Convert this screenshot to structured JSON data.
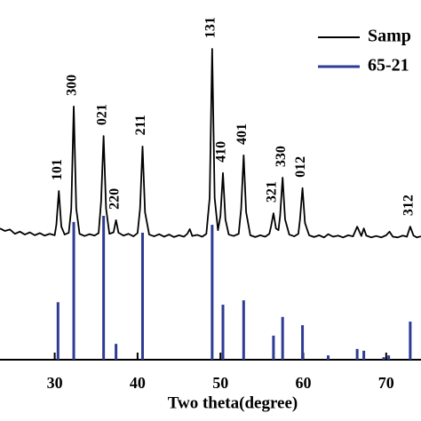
{
  "chart_data": {
    "type": "line",
    "xlabel": "Two theta(degree)",
    "xlim": [
      23.4,
      74.2
    ],
    "xticks": [
      30,
      40,
      50,
      60,
      70
    ],
    "ylim": [
      0,
      100
    ],
    "series": [
      {
        "name": "Samp",
        "color": "#000000",
        "style": "line",
        "x": [
          23.4,
          24.0,
          24.6,
          25.2,
          25.8,
          26.4,
          27.0,
          27.6,
          28.2,
          28.8,
          29.4,
          30.0,
          30.2,
          30.5,
          30.8,
          31.2,
          31.7,
          32.0,
          32.3,
          32.6,
          33.0,
          33.6,
          34.2,
          34.8,
          35.3,
          35.6,
          35.9,
          36.2,
          36.6,
          37.1,
          37.4,
          37.7,
          38.3,
          38.9,
          39.5,
          40.0,
          40.3,
          40.6,
          40.9,
          41.4,
          42.0,
          42.6,
          43.2,
          43.8,
          44.4,
          45.0,
          45.6,
          46.0,
          46.3,
          46.6,
          47.2,
          47.8,
          48.3,
          48.7,
          49.0,
          49.3,
          49.7,
          50.0,
          50.3,
          50.6,
          51.0,
          51.6,
          52.2,
          52.5,
          52.8,
          53.1,
          53.6,
          54.2,
          54.8,
          55.4,
          55.9,
          56.1,
          56.4,
          56.7,
          57.0,
          57.2,
          57.5,
          57.8,
          58.3,
          58.9,
          59.4,
          59.6,
          59.9,
          60.2,
          60.7,
          61.3,
          61.9,
          62.5,
          63.0,
          63.6,
          64.2,
          64.8,
          65.4,
          66.0,
          66.5,
          67.0,
          67.3,
          67.6,
          68.2,
          68.8,
          69.4,
          70.0,
          70.4,
          70.8,
          71.4,
          72.0,
          72.5,
          72.9,
          73.3,
          73.7,
          74.2
        ],
        "values": [
          36.5,
          35.8,
          36.2,
          35.0,
          35.6,
          34.8,
          35.4,
          34.6,
          35.2,
          34.5,
          35.0,
          34.6,
          37.5,
          46.9,
          37.0,
          34.8,
          35.3,
          42.0,
          70.4,
          42.0,
          35.0,
          34.4,
          34.9,
          34.5,
          35.2,
          44.0,
          62.2,
          42.0,
          35.0,
          35.4,
          38.8,
          35.3,
          34.5,
          35.0,
          34.3,
          35.2,
          42.0,
          59.3,
          41.0,
          34.8,
          34.3,
          34.9,
          34.2,
          34.8,
          34.1,
          34.6,
          34.2,
          35.0,
          36.3,
          34.4,
          34.7,
          34.2,
          35.0,
          45.0,
          86.4,
          45.0,
          36.0,
          40.0,
          51.9,
          39.0,
          34.8,
          34.4,
          35.0,
          42.0,
          56.8,
          41.0,
          34.6,
          34.1,
          34.6,
          34.2,
          35.0,
          37.0,
          40.7,
          36.5,
          36.0,
          40.0,
          50.6,
          39.0,
          34.8,
          34.3,
          35.0,
          39.0,
          47.7,
          38.0,
          34.6,
          34.1,
          34.6,
          34.0,
          34.9,
          34.2,
          34.5,
          34.0,
          34.6,
          34.3,
          37.0,
          34.4,
          36.5,
          34.5,
          34.0,
          34.4,
          34.0,
          34.6,
          35.6,
          34.2,
          34.0,
          34.5,
          34.2,
          37.0,
          34.5,
          34.0,
          34.3
        ]
      },
      {
        "name": "65-21",
        "color": "#2e3b94",
        "style": "stick",
        "x": [
          30.4,
          32.3,
          35.9,
          37.4,
          40.6,
          49.0,
          50.3,
          52.8,
          56.4,
          57.5,
          59.9,
          63.0,
          66.5,
          67.3,
          69.7,
          70.3,
          72.9
        ],
        "values": [
          16.0,
          38.3,
          40.0,
          4.4,
          35.3,
          37.5,
          15.3,
          16.5,
          6.7,
          11.9,
          9.6,
          1.2,
          3.0,
          2.5,
          0.7,
          1.2,
          10.6
        ]
      }
    ],
    "annotations": [
      {
        "text": "101",
        "x": 30.5
      },
      {
        "text": "300",
        "x": 32.3
      },
      {
        "text": "021",
        "x": 35.9
      },
      {
        "text": "220",
        "x": 37.4
      },
      {
        "text": "211",
        "x": 40.6
      },
      {
        "text": "131",
        "x": 49.0
      },
      {
        "text": "410",
        "x": 50.3
      },
      {
        "text": "401",
        "x": 52.8
      },
      {
        "text": "321",
        "x": 56.4
      },
      {
        "text": "330",
        "x": 57.5
      },
      {
        "text": "012",
        "x": 59.9
      },
      {
        "text": "312",
        "x": 72.9
      }
    ]
  }
}
